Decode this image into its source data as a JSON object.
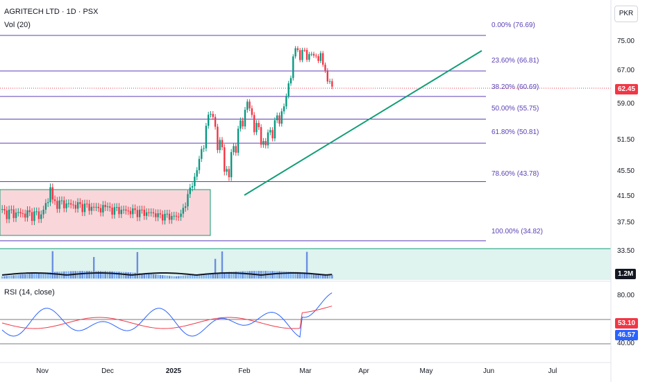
{
  "header": {
    "symbol_line": "AGRITECH LTD · 1D · PSX",
    "vol_label": "Vol (20)",
    "currency_button": "PKR"
  },
  "price_axis": {
    "ticks": [
      "75.00",
      "67.00",
      "59.00",
      "51.50",
      "45.50",
      "41.50",
      "37.50",
      "33.50"
    ],
    "current_price": "62.45",
    "volume_value": "1.2M",
    "current_color": "#f23645"
  },
  "fib_levels": [
    {
      "label": "0.00% (76.69)",
      "price": 76.69
    },
    {
      "label": "23.60% (66.81)",
      "price": 66.81
    },
    {
      "label": "38.20% (60.69)",
      "price": 60.69
    },
    {
      "label": "50.00% (55.75)",
      "price": 55.75
    },
    {
      "label": "61.80% (50.81)",
      "price": 50.81
    },
    {
      "label": "78.60% (43.78)",
      "price": 43.78
    },
    {
      "label": "100.00% (34.82)",
      "price": 34.82
    }
  ],
  "rsi": {
    "label": "RSI (14, close)",
    "upper_tick": "80.00",
    "lower_tick": "40.00",
    "ma_value": "53.10",
    "rsi_value": "46.57",
    "rsi_color": "#2962ff",
    "ma_color": "#f23645"
  },
  "time_axis": [
    "Nov",
    "Dec",
    "2025",
    "Feb",
    "Mar",
    "Apr",
    "May",
    "Jun",
    "Jul"
  ],
  "colors": {
    "up": "#089981",
    "down": "#f23645",
    "fib_line": "#5b3fb5",
    "trendline": "#0f9d76",
    "range_box": "#f9d6da",
    "volume_bg": "#dff3ef"
  }
}
